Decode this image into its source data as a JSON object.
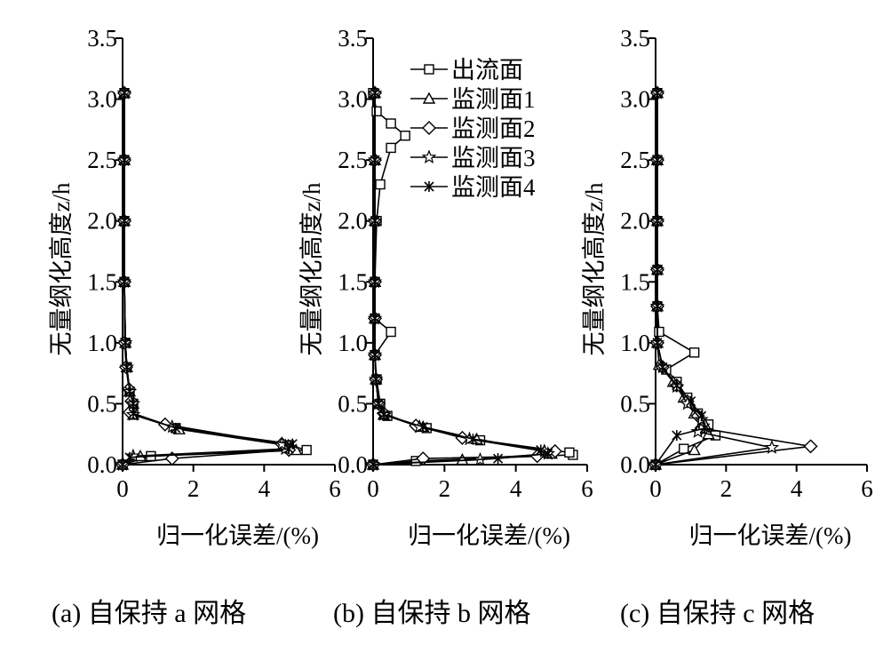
{
  "chart_data": [
    {
      "type": "line",
      "caption": "(a) 自保持 a 网格",
      "xlabel": "归一化误差/(%)",
      "ylabel": "无量纲化高度z/h",
      "xlim": [
        0,
        6
      ],
      "ylim": [
        0,
        3.5
      ],
      "xticks": [
        "0",
        "2",
        "4",
        "6"
      ],
      "yticks": [
        "0.0",
        "0.5",
        "1.0",
        "1.5",
        "2.0",
        "2.5",
        "3.0",
        "3.5"
      ],
      "legend": false,
      "series": [
        {
          "name": "出流面",
          "marker": "square",
          "points": [
            [
              0,
              0
            ],
            [
              0.8,
              0.07
            ],
            [
              5.2,
              0.12
            ],
            [
              4.7,
              0.16
            ],
            [
              1.5,
              0.3
            ],
            [
              0.3,
              0.42
            ],
            [
              0.3,
              0.5
            ],
            [
              0.2,
              0.6
            ],
            [
              0.12,
              0.8
            ],
            [
              0.08,
              1.0
            ],
            [
              0.05,
              1.5
            ],
            [
              0.05,
              2.0
            ],
            [
              0.05,
              2.5
            ],
            [
              0.05,
              3.05
            ]
          ]
        },
        {
          "name": "监测面1",
          "marker": "triangle",
          "points": [
            [
              0,
              0
            ],
            [
              0.5,
              0.07
            ],
            [
              4.9,
              0.12
            ],
            [
              4.6,
              0.16
            ],
            [
              1.6,
              0.29
            ],
            [
              0.3,
              0.41
            ],
            [
              0.3,
              0.5
            ],
            [
              0.2,
              0.6
            ],
            [
              0.12,
              0.8
            ],
            [
              0.08,
              1.0
            ],
            [
              0.05,
              1.5
            ],
            [
              0.05,
              2.0
            ],
            [
              0.05,
              2.5
            ],
            [
              0.05,
              3.05
            ]
          ]
        },
        {
          "name": "监测面2",
          "marker": "diamond",
          "points": [
            [
              0,
              0
            ],
            [
              1.4,
              0.05
            ],
            [
              4.7,
              0.12
            ],
            [
              4.5,
              0.17
            ],
            [
              1.2,
              0.33
            ],
            [
              0.2,
              0.43
            ],
            [
              0.25,
              0.52
            ],
            [
              0.18,
              0.62
            ],
            [
              0.1,
              0.8
            ],
            [
              0.06,
              1.0
            ],
            [
              0.05,
              1.5
            ],
            [
              0.05,
              2.0
            ],
            [
              0.05,
              2.5
            ],
            [
              0.05,
              3.05
            ]
          ]
        },
        {
          "name": "监测面3",
          "marker": "star",
          "points": [
            [
              0,
              0
            ],
            [
              0.3,
              0.07
            ],
            [
              4.6,
              0.13
            ],
            [
              4.5,
              0.17
            ],
            [
              1.4,
              0.31
            ],
            [
              0.3,
              0.41
            ],
            [
              0.3,
              0.5
            ],
            [
              0.2,
              0.6
            ],
            [
              0.12,
              0.8
            ],
            [
              0.08,
              1.0
            ],
            [
              0.05,
              1.5
            ],
            [
              0.05,
              2.0
            ],
            [
              0.05,
              2.5
            ],
            [
              0.05,
              3.05
            ]
          ]
        },
        {
          "name": "监测面4",
          "marker": "cross",
          "points": [
            [
              0,
              0
            ],
            [
              0.2,
              0.06
            ],
            [
              4.7,
              0.13
            ],
            [
              4.8,
              0.17
            ],
            [
              1.5,
              0.3
            ],
            [
              0.3,
              0.42
            ],
            [
              0.3,
              0.5
            ],
            [
              0.2,
              0.6
            ],
            [
              0.12,
              0.8
            ],
            [
              0.08,
              1.0
            ],
            [
              0.05,
              1.5
            ],
            [
              0.05,
              2.0
            ],
            [
              0.05,
              2.5
            ],
            [
              0.05,
              3.05
            ]
          ]
        }
      ]
    },
    {
      "type": "line",
      "caption": "(b) 自保持 b 网格",
      "xlabel": "归一化误差/(%)",
      "ylabel": "无量纲化高度z/h",
      "xlim": [
        0,
        6
      ],
      "ylim": [
        0,
        3.5
      ],
      "xticks": [
        "0",
        "2",
        "4",
        "6"
      ],
      "yticks": [
        "0.0",
        "0.5",
        "1.0",
        "1.5",
        "2.0",
        "2.5",
        "3.0",
        "3.5"
      ],
      "legend": true,
      "legend_position": "top-right",
      "series": [
        {
          "name": "出流面",
          "marker": "square",
          "points": [
            [
              0,
              0
            ],
            [
              1.2,
              0.03
            ],
            [
              5.6,
              0.08
            ],
            [
              5.5,
              0.1
            ],
            [
              3.0,
              0.2
            ],
            [
              1.5,
              0.3
            ],
            [
              0.4,
              0.4
            ],
            [
              0.2,
              0.5
            ],
            [
              0.1,
              0.7
            ],
            [
              0.05,
              0.9
            ],
            [
              0.5,
              1.09
            ],
            [
              0.05,
              1.2
            ],
            [
              0.05,
              1.5
            ],
            [
              0.1,
              2.0
            ],
            [
              0.2,
              2.3
            ],
            [
              0.5,
              2.6
            ],
            [
              0.9,
              2.7
            ],
            [
              0.5,
              2.8
            ],
            [
              0.1,
              2.9
            ],
            [
              0,
              3.05
            ]
          ]
        },
        {
          "name": "监测面1",
          "marker": "triangle",
          "points": [
            [
              0,
              0
            ],
            [
              2.5,
              0.04
            ],
            [
              5.0,
              0.09
            ],
            [
              4.8,
              0.11
            ],
            [
              2.9,
              0.21
            ],
            [
              1.4,
              0.31
            ],
            [
              0.3,
              0.41
            ],
            [
              0.15,
              0.5
            ],
            [
              0.08,
              0.7
            ],
            [
              0.05,
              0.9
            ],
            [
              0.05,
              1.2
            ],
            [
              0.05,
              1.5
            ],
            [
              0.05,
              2.0
            ],
            [
              0.05,
              2.5
            ],
            [
              0.05,
              3.05
            ]
          ]
        },
        {
          "name": "监测面2",
          "marker": "diamond",
          "points": [
            [
              0,
              0
            ],
            [
              1.4,
              0.05
            ],
            [
              4.6,
              0.07
            ],
            [
              5.1,
              0.11
            ],
            [
              2.5,
              0.22
            ],
            [
              1.2,
              0.32
            ],
            [
              0.3,
              0.42
            ],
            [
              0.15,
              0.5
            ],
            [
              0.08,
              0.7
            ],
            [
              0.05,
              0.9
            ],
            [
              0.05,
              1.2
            ],
            [
              0.05,
              1.5
            ],
            [
              0.05,
              2.0
            ],
            [
              0.05,
              2.5
            ],
            [
              0.05,
              3.05
            ]
          ]
        },
        {
          "name": "监测面3",
          "marker": "star",
          "points": [
            [
              0,
              0
            ],
            [
              3.0,
              0.04
            ],
            [
              4.9,
              0.09
            ],
            [
              4.8,
              0.11
            ],
            [
              2.7,
              0.21
            ],
            [
              1.3,
              0.31
            ],
            [
              0.3,
              0.41
            ],
            [
              0.15,
              0.5
            ],
            [
              0.08,
              0.7
            ],
            [
              0.05,
              0.9
            ],
            [
              0.05,
              1.2
            ],
            [
              0.05,
              1.5
            ],
            [
              0.05,
              2.0
            ],
            [
              0.05,
              2.5
            ],
            [
              0.05,
              3.05
            ]
          ]
        },
        {
          "name": "监测面4",
          "marker": "cross",
          "points": [
            [
              0,
              0
            ],
            [
              3.5,
              0.05
            ],
            [
              4.9,
              0.09
            ],
            [
              4.7,
              0.12
            ],
            [
              2.8,
              0.21
            ],
            [
              1.4,
              0.31
            ],
            [
              0.3,
              0.41
            ],
            [
              0.15,
              0.5
            ],
            [
              0.08,
              0.7
            ],
            [
              0.05,
              0.9
            ],
            [
              0.05,
              1.2
            ],
            [
              0.05,
              1.5
            ],
            [
              0.05,
              2.0
            ],
            [
              0.05,
              2.5
            ],
            [
              0.05,
              3.05
            ]
          ]
        }
      ]
    },
    {
      "type": "line",
      "caption": "(c) 自保持 c 网格",
      "xlabel": "归一化误差/(%)",
      "ylabel": "无量纲化高度z/h",
      "xlim": [
        0,
        6
      ],
      "ylim": [
        0,
        3.5
      ],
      "xticks": [
        "0",
        "2",
        "4",
        "6"
      ],
      "yticks": [
        "0.0",
        "0.5",
        "1.0",
        "1.5",
        "2.0",
        "2.5",
        "3.0",
        "3.5"
      ],
      "legend": false,
      "series": [
        {
          "name": "出流面",
          "marker": "square",
          "points": [
            [
              0,
              0
            ],
            [
              0.8,
              0.13
            ],
            [
              1.7,
              0.24
            ],
            [
              1.5,
              0.33
            ],
            [
              1.2,
              0.42
            ],
            [
              0.9,
              0.55
            ],
            [
              0.6,
              0.68
            ],
            [
              0.3,
              0.78
            ],
            [
              1.1,
              0.92
            ],
            [
              0.1,
              1.09
            ],
            [
              0.05,
              1.3
            ],
            [
              0.05,
              1.6
            ],
            [
              0.05,
              2.0
            ],
            [
              0.05,
              2.5
            ],
            [
              0.05,
              3.05
            ]
          ]
        },
        {
          "name": "监测面1",
          "marker": "triangle",
          "points": [
            [
              0,
              0
            ],
            [
              1.1,
              0.12
            ],
            [
              1.5,
              0.25
            ],
            [
              1.4,
              0.33
            ],
            [
              1.1,
              0.42
            ],
            [
              0.8,
              0.55
            ],
            [
              0.5,
              0.68
            ],
            [
              0.1,
              0.82
            ],
            [
              0.05,
              1.0
            ],
            [
              0.05,
              1.3
            ],
            [
              0.05,
              1.6
            ],
            [
              0.05,
              2.0
            ],
            [
              0.05,
              2.5
            ],
            [
              0.05,
              3.05
            ]
          ]
        },
        {
          "name": "监测面2",
          "marker": "diamond",
          "points": [
            [
              0,
              0
            ],
            [
              4.4,
              0.15
            ],
            [
              1.3,
              0.3
            ],
            [
              1.2,
              0.4
            ],
            [
              0.9,
              0.52
            ],
            [
              0.6,
              0.65
            ],
            [
              0.2,
              0.8
            ],
            [
              0.05,
              1.0
            ],
            [
              0.05,
              1.3
            ],
            [
              0.05,
              1.6
            ],
            [
              0.05,
              2.0
            ],
            [
              0.05,
              2.5
            ],
            [
              0.05,
              3.05
            ]
          ]
        },
        {
          "name": "监测面3",
          "marker": "star",
          "points": [
            [
              0,
              0
            ],
            [
              3.3,
              0.14
            ],
            [
              1.2,
              0.27
            ],
            [
              1.3,
              0.37
            ],
            [
              0.9,
              0.5
            ],
            [
              0.6,
              0.64
            ],
            [
              0.2,
              0.8
            ],
            [
              0.05,
              1.0
            ],
            [
              0.05,
              1.3
            ],
            [
              0.05,
              1.6
            ],
            [
              0.05,
              2.0
            ],
            [
              0.05,
              2.5
            ],
            [
              0.05,
              3.05
            ]
          ]
        },
        {
          "name": "监测面4",
          "marker": "cross",
          "points": [
            [
              0,
              0
            ],
            [
              0.6,
              0.24
            ],
            [
              1.4,
              0.3
            ],
            [
              1.3,
              0.4
            ],
            [
              1.0,
              0.52
            ],
            [
              0.6,
              0.65
            ],
            [
              0.2,
              0.8
            ],
            [
              0.05,
              1.0
            ],
            [
              0.05,
              1.3
            ],
            [
              0.05,
              1.6
            ],
            [
              0.05,
              2.0
            ],
            [
              0.05,
              2.5
            ],
            [
              0.05,
              3.05
            ]
          ]
        }
      ]
    }
  ]
}
